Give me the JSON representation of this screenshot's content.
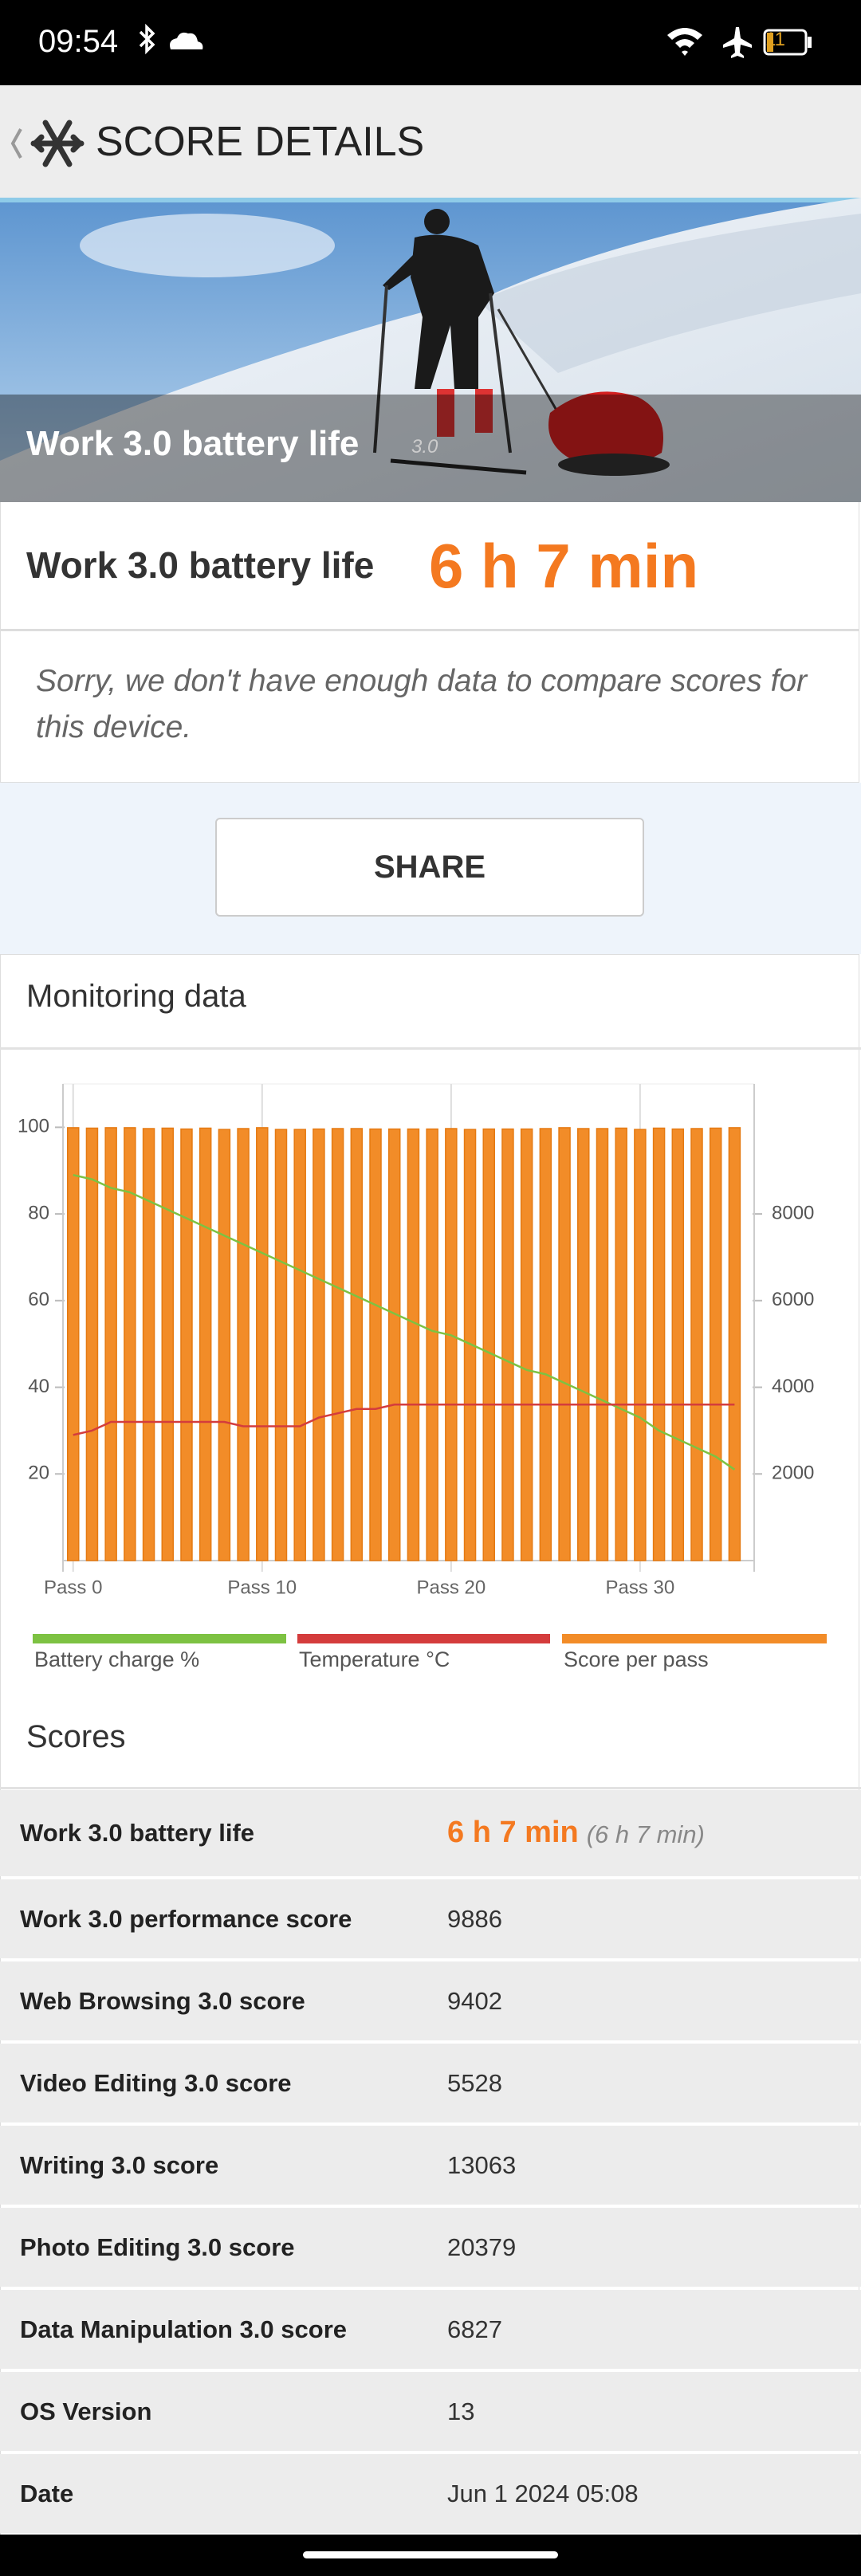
{
  "status_bar": {
    "time": "09:54",
    "battery": "11"
  },
  "header": {
    "title": "SCORE DETAILS"
  },
  "hero": {
    "title": "Work 3.0 battery life",
    "version": "3.0"
  },
  "result": {
    "label": "Work 3.0 battery life",
    "value": "6 h 7 min"
  },
  "notice": "Sorry, we don't have enough data to compare scores for this device.",
  "share": "SHARE",
  "monitoring": {
    "title": "Monitoring data"
  },
  "chart_data": {
    "type": "bar",
    "x": [
      0,
      1,
      2,
      3,
      4,
      5,
      6,
      7,
      8,
      9,
      10,
      11,
      12,
      13,
      14,
      15,
      16,
      17,
      18,
      19,
      20,
      21,
      22,
      23,
      24,
      25,
      26,
      27,
      28,
      29,
      30,
      31,
      32,
      33,
      34,
      35
    ],
    "xlim": [
      -0.2,
      35.7
    ],
    "xticks": [
      {
        "value": 0,
        "label": "Pass 0"
      },
      {
        "value": 10,
        "label": "Pass 10"
      },
      {
        "value": 20,
        "label": "Pass 20"
      },
      {
        "value": 30,
        "label": "Pass 30"
      }
    ],
    "ylim": [
      0,
      110
    ],
    "yticks": [
      20,
      40,
      60,
      80,
      100
    ],
    "y2lim": [
      0,
      11000
    ],
    "y2ticks": [
      2000,
      4000,
      6000,
      8000
    ],
    "series": [
      {
        "name": "Battery charge %",
        "color": "#7dc242",
        "type": "line",
        "values": [
          89,
          88,
          86,
          85,
          83,
          81,
          79,
          77,
          75,
          73,
          71,
          69,
          67,
          65,
          63,
          61,
          59,
          57,
          55,
          53,
          52,
          50,
          48,
          46,
          44,
          43,
          41,
          39,
          37,
          35,
          33,
          30,
          28,
          26,
          24,
          21
        ]
      },
      {
        "name": "Temperature °C",
        "color": "#d43c3c",
        "type": "line",
        "values": [
          29,
          30,
          32,
          32,
          32,
          32,
          32,
          32,
          32,
          31,
          31,
          31,
          31,
          33,
          34,
          35,
          35,
          36,
          36,
          36,
          36,
          36,
          36,
          36,
          36,
          36,
          36,
          36,
          36,
          36,
          36,
          36,
          36,
          36,
          36,
          36
        ]
      },
      {
        "name": "Score per pass",
        "color": "#f28c28",
        "type": "bar",
        "axis": "y2",
        "values": [
          9990,
          9980,
          9990,
          9990,
          9970,
          9980,
          9960,
          9980,
          9950,
          9970,
          9990,
          9950,
          9950,
          9960,
          9970,
          9970,
          9960,
          9960,
          9960,
          9960,
          9970,
          9950,
          9960,
          9960,
          9960,
          9970,
          9990,
          9970,
          9970,
          9980,
          9950,
          9980,
          9960,
          9970,
          9980,
          9990
        ]
      }
    ]
  },
  "scores": {
    "title": "Scores",
    "rows": [
      {
        "label": "Work 3.0 battery life",
        "value": "6 h 7 min",
        "detail": "(6 h 7 min)"
      },
      {
        "label": "Work 3.0 performance score",
        "value": "9886"
      },
      {
        "label": "Web Browsing 3.0 score",
        "value": "9402"
      },
      {
        "label": "Video Editing 3.0 score",
        "value": "5528"
      },
      {
        "label": "Writing 3.0 score",
        "value": "13063"
      },
      {
        "label": "Photo Editing 3.0 score",
        "value": "20379"
      },
      {
        "label": "Data Manipulation 3.0 score",
        "value": "6827"
      },
      {
        "label": "OS Version",
        "value": "13"
      },
      {
        "label": "Date",
        "value": "Jun 1 2024 05:08"
      }
    ]
  }
}
